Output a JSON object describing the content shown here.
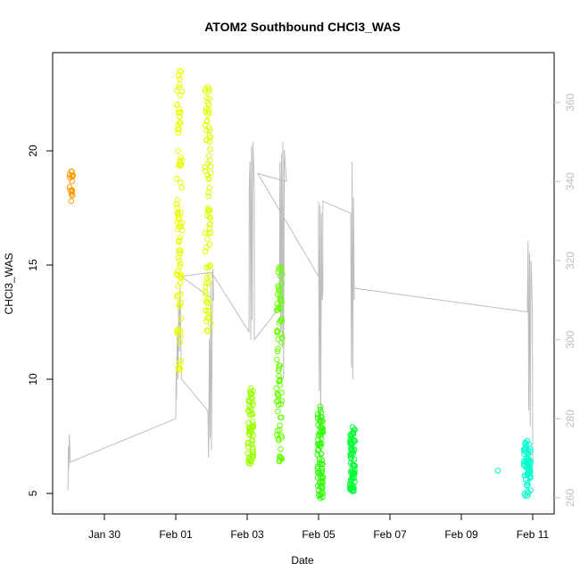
{
  "chart_data": {
    "type": "scatter",
    "title": "ATOM2 Southbound CHCl3_WAS",
    "xlabel": "Date",
    "ylabel": "CHCl3_WAS",
    "x_tick_labels": [
      "Jan 30",
      "Feb 01",
      "Feb 03",
      "Feb 05",
      "Feb 07",
      "Feb 09",
      "Feb 11"
    ],
    "x_tick_days": [
      30,
      32,
      34,
      36,
      38,
      40,
      42
    ],
    "xlim_days": [
      28.55,
      42.6
    ],
    "ylim": [
      4.1,
      24.3
    ],
    "y_ticks": [
      5,
      10,
      15,
      20
    ],
    "y_tick_labels": [
      "5",
      "10",
      "15",
      "20"
    ],
    "secondary_ylim": [
      255.9,
      372.6
    ],
    "secondary_y_ticks": [
      260,
      280,
      300,
      320,
      340,
      360
    ],
    "secondary_y_tick_labels": [
      "260",
      "280",
      "300",
      "320",
      "340",
      "360"
    ],
    "series": [
      {
        "name": "CHCl3_WAS points",
        "kind": "scatter",
        "clusters": [
          {
            "day": 29.07,
            "spread": 0.06,
            "y_min": 17.8,
            "y_max": 19.1,
            "count": 14,
            "color": "#ff9900"
          },
          {
            "day": 32.1,
            "spread": 0.08,
            "y_min": 10.4,
            "y_max": 23.5,
            "count": 90,
            "color": "#eaff00"
          },
          {
            "day": 32.9,
            "spread": 0.08,
            "y_min": 12.1,
            "y_max": 22.8,
            "count": 80,
            "color": "#dfff00"
          },
          {
            "day": 34.1,
            "spread": 0.08,
            "y_min": 6.3,
            "y_max": 9.6,
            "count": 60,
            "color": "#9cff00"
          },
          {
            "day": 34.9,
            "spread": 0.08,
            "y_min": 6.4,
            "y_max": 14.9,
            "count": 75,
            "color": "#66ff00"
          },
          {
            "day": 36.05,
            "spread": 0.08,
            "y_min": 4.8,
            "y_max": 8.8,
            "count": 70,
            "color": "#2bff00"
          },
          {
            "day": 36.95,
            "spread": 0.07,
            "y_min": 5.1,
            "y_max": 7.9,
            "count": 70,
            "color": "#00ff33"
          },
          {
            "day": 41.85,
            "spread": 0.1,
            "y_min": 4.9,
            "y_max": 7.3,
            "count": 60,
            "color": "#00ffcc"
          }
        ],
        "points": [
          {
            "day": 41.02,
            "y": 6.0,
            "color": "#00ff99"
          }
        ]
      },
      {
        "name": "secondary trace",
        "kind": "line",
        "axis": "right",
        "color": "#bdbdbd",
        "points": [
          [
            28.98,
            262
          ],
          [
            28.99,
            273
          ],
          [
            29.0,
            267
          ],
          [
            29.02,
            276
          ],
          [
            29.04,
            269
          ],
          [
            32.0,
            280
          ],
          [
            32.01,
            292
          ],
          [
            32.02,
            285
          ],
          [
            32.04,
            302
          ],
          [
            32.06,
            290
          ],
          [
            32.08,
            310
          ],
          [
            32.1,
            297
          ],
          [
            32.12,
            314
          ],
          [
            32.14,
            300
          ],
          [
            32.16,
            290
          ],
          [
            32.9,
            282
          ],
          [
            32.92,
            270
          ],
          [
            32.94,
            300
          ],
          [
            32.96,
            275
          ],
          [
            32.98,
            315
          ],
          [
            33.0,
            272
          ],
          [
            33.02,
            305
          ],
          [
            33.04,
            318
          ],
          [
            33.06,
            310
          ],
          [
            32.15,
            316
          ],
          [
            33.0,
            317
          ],
          [
            34.05,
            302
          ],
          [
            34.06,
            340
          ],
          [
            34.08,
            345
          ],
          [
            34.1,
            300
          ],
          [
            34.12,
            349
          ],
          [
            34.14,
            305
          ],
          [
            34.16,
            350
          ],
          [
            34.18,
            345
          ],
          [
            34.2,
            338
          ],
          [
            34.2,
            300
          ],
          [
            34.9,
            308
          ],
          [
            34.92,
            345
          ],
          [
            34.94,
            302
          ],
          [
            34.96,
            347
          ],
          [
            34.98,
            298
          ],
          [
            35.0,
            350
          ],
          [
            35.02,
            290
          ],
          [
            35.04,
            348
          ],
          [
            35.06,
            345
          ],
          [
            35.1,
            340
          ],
          [
            34.3,
            342
          ],
          [
            36.0,
            316
          ],
          [
            36.0,
            335
          ],
          [
            36.02,
            287
          ],
          [
            36.04,
            334
          ],
          [
            36.06,
            275
          ],
          [
            36.08,
            332
          ],
          [
            36.1,
            310
          ],
          [
            36.12,
            312
          ],
          [
            36.12,
            335
          ],
          [
            36.9,
            332
          ],
          [
            36.92,
            293
          ],
          [
            36.94,
            345
          ],
          [
            36.96,
            290
          ],
          [
            36.98,
            336
          ],
          [
            37.0,
            310
          ],
          [
            37.0,
            313
          ],
          [
            41.85,
            307
          ],
          [
            41.87,
            325
          ],
          [
            41.89,
            282
          ],
          [
            41.91,
            322
          ],
          [
            41.93,
            278
          ],
          [
            41.95,
            320
          ],
          [
            41.97,
            316
          ],
          [
            41.99,
            306
          ],
          [
            42.0,
            268
          ]
        ]
      }
    ]
  }
}
